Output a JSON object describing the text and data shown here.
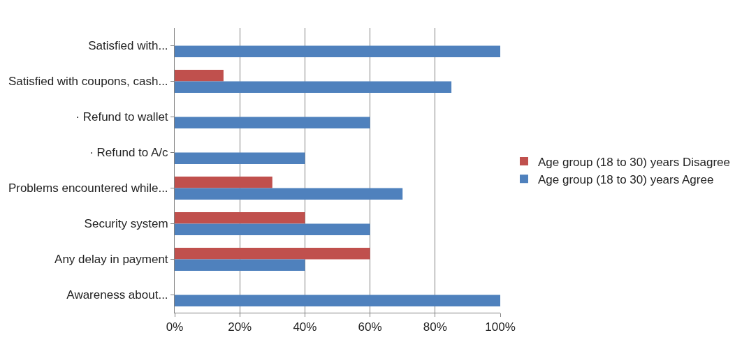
{
  "chart_data": {
    "type": "bar",
    "orientation": "horizontal",
    "categories": [
      "Satisfied with...",
      "Satisfied with coupons, cash...",
      "· Refund to wallet",
      "· Refund to A/c",
      "Problems encountered while...",
      "Security system",
      "Any delay in payment",
      "Awareness about..."
    ],
    "series": [
      {
        "name": "Age group (18 to 30) years Disagree",
        "color": "#c0504d",
        "values": [
          0,
          15,
          0,
          0,
          30,
          40,
          60,
          0
        ]
      },
      {
        "name": "Age group (18 to 30) years Agree",
        "color": "#4f81bd",
        "values": [
          100,
          85,
          60,
          40,
          70,
          60,
          40,
          100
        ]
      }
    ],
    "xlim": [
      0,
      100
    ],
    "xticks": [
      {
        "value": 0,
        "label": "0%"
      },
      {
        "value": 20,
        "label": "20%"
      },
      {
        "value": 40,
        "label": "40%"
      },
      {
        "value": 60,
        "label": "60%"
      },
      {
        "value": 80,
        "label": "80%"
      },
      {
        "value": 100,
        "label": "100%"
      }
    ],
    "grid": "x",
    "legend": "right"
  }
}
